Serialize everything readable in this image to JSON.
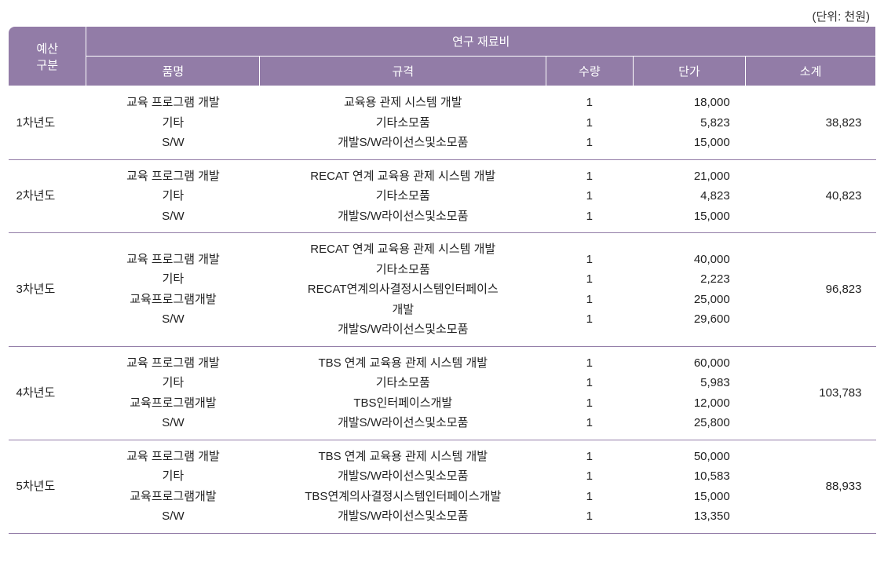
{
  "unit_label": "(단위: 천원)",
  "header": {
    "budget_category": "예산\n구분",
    "materials_title": "연구 재료비",
    "item_name": "품명",
    "spec": "규격",
    "qty": "수량",
    "unit_price": "단가",
    "subtotal": "소계"
  },
  "colors": {
    "header_bg": "#927ca7",
    "header_text": "#ffffff",
    "border": "#927ca7",
    "text": "#222222",
    "background": "#ffffff"
  },
  "rows": [
    {
      "year": "1차년도",
      "items": [
        "교육 프로그램 개발",
        "기타",
        "S/W"
      ],
      "specs": [
        "교육용 관제 시스템 개발",
        "기타소모품",
        "개발S/W라이선스및소모품"
      ],
      "qtys": [
        "1",
        "1",
        "1"
      ],
      "prices": [
        "18,000",
        "5,823",
        "15,000"
      ],
      "subtotal": "38,823"
    },
    {
      "year": "2차년도",
      "items": [
        "교육 프로그램 개발",
        "기타",
        "S/W"
      ],
      "specs": [
        "RECAT 연계 교육용 관제 시스템 개발",
        "기타소모품",
        "개발S/W라이선스및소모품"
      ],
      "qtys": [
        "1",
        "1",
        "1"
      ],
      "prices": [
        "21,000",
        "4,823",
        "15,000"
      ],
      "subtotal": "40,823"
    },
    {
      "year": "3차년도",
      "items": [
        "교육 프로그램 개발",
        "기타",
        "교육프로그램개발",
        "S/W"
      ],
      "specs": [
        "RECAT 연계 교육용 관제 시스템 개발",
        "기타소모품",
        "RECAT연계의사결정시스템인터페이스\n개발",
        "개발S/W라이선스및소모품"
      ],
      "qtys": [
        "1",
        "1",
        "1",
        "1"
      ],
      "prices": [
        "40,000",
        "2,223",
        "25,000",
        "29,600"
      ],
      "subtotal": "96,823"
    },
    {
      "year": "4차년도",
      "items": [
        "교육 프로그램 개발",
        "기타",
        "교육프로그램개발",
        "S/W"
      ],
      "specs": [
        "TBS 연계 교육용 관제 시스템 개발",
        "기타소모품",
        "TBS인터페이스개발",
        "개발S/W라이선스및소모품"
      ],
      "qtys": [
        "1",
        "1",
        "1",
        "1"
      ],
      "prices": [
        "60,000",
        "5,983",
        "12,000",
        "25,800"
      ],
      "subtotal": "103,783"
    },
    {
      "year": "5차년도",
      "items": [
        "교육 프로그램 개발",
        "기타",
        "교육프로그램개발",
        "S/W"
      ],
      "specs": [
        "TBS 연계 교육용 관제 시스템 개발",
        "개발S/W라이선스및소모품",
        "TBS연계의사결정시스템인터페이스개발",
        "개발S/W라이선스및소모품"
      ],
      "qtys": [
        "1",
        "1",
        "1",
        "1"
      ],
      "prices": [
        "50,000",
        "10,583",
        "15,000",
        "13,350"
      ],
      "subtotal": "88,933"
    }
  ]
}
